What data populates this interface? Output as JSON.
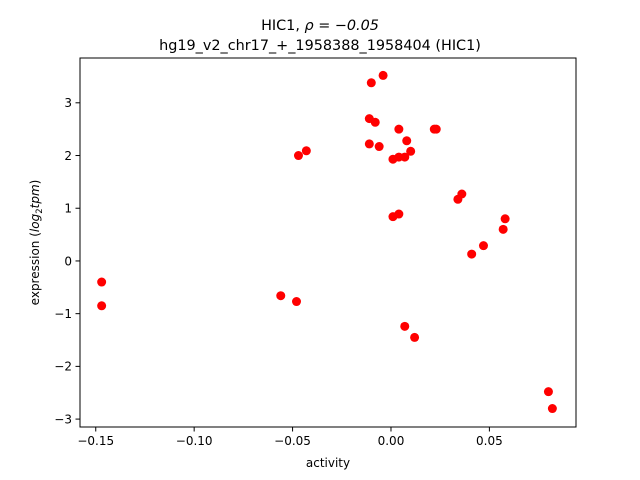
{
  "chart_data": {
    "type": "scatter",
    "title_line1_prefix": "HIC1, ",
    "title_line1_rho": "ρ = −0.05",
    "title_line2": "hg19_v2_chr17_+_1958388_1958404 (HIC1)",
    "xlabel": "activity",
    "ylabel_prefix": "expression (",
    "ylabel_log": "log",
    "ylabel_sub": "2",
    "ylabel_tpm": "tpm",
    "ylabel_suffix": ")",
    "xlim": [
      -0.158,
      0.094
    ],
    "ylim": [
      -3.15,
      3.85
    ],
    "xticks": [
      {
        "value": -0.15,
        "label": "−0.15"
      },
      {
        "value": -0.1,
        "label": "−0.10"
      },
      {
        "value": -0.05,
        "label": "−0.05"
      },
      {
        "value": 0.0,
        "label": "0.00"
      },
      {
        "value": 0.05,
        "label": "0.05"
      }
    ],
    "yticks": [
      {
        "value": -3,
        "label": "−3"
      },
      {
        "value": -2,
        "label": "−2"
      },
      {
        "value": -1,
        "label": "−1"
      },
      {
        "value": 0,
        "label": "0"
      },
      {
        "value": 1,
        "label": "1"
      },
      {
        "value": 2,
        "label": "2"
      },
      {
        "value": 3,
        "label": "3"
      }
    ],
    "marker_color": "#ff0000",
    "grid": false,
    "points": [
      {
        "x": -0.147,
        "y": -0.4
      },
      {
        "x": -0.147,
        "y": -0.85
      },
      {
        "x": -0.056,
        "y": -0.66
      },
      {
        "x": -0.048,
        "y": -0.77
      },
      {
        "x": -0.047,
        "y": 2.0
      },
      {
        "x": -0.043,
        "y": 2.09
      },
      {
        "x": -0.01,
        "y": 3.38
      },
      {
        "x": -0.004,
        "y": 3.52
      },
      {
        "x": -0.011,
        "y": 2.7
      },
      {
        "x": -0.008,
        "y": 2.63
      },
      {
        "x": -0.011,
        "y": 2.22
      },
      {
        "x": -0.006,
        "y": 2.17
      },
      {
        "x": 0.001,
        "y": 1.93
      },
      {
        "x": 0.004,
        "y": 1.97
      },
      {
        "x": 0.004,
        "y": 2.5
      },
      {
        "x": 0.007,
        "y": 1.97
      },
      {
        "x": 0.008,
        "y": 2.28
      },
      {
        "x": 0.01,
        "y": 2.08
      },
      {
        "x": 0.022,
        "y": 2.5
      },
      {
        "x": 0.023,
        "y": 2.5
      },
      {
        "x": 0.001,
        "y": 0.84
      },
      {
        "x": 0.004,
        "y": 0.89
      },
      {
        "x": 0.007,
        "y": -1.24
      },
      {
        "x": 0.012,
        "y": -1.45
      },
      {
        "x": 0.034,
        "y": 1.17
      },
      {
        "x": 0.036,
        "y": 1.27
      },
      {
        "x": 0.041,
        "y": 0.13
      },
      {
        "x": 0.047,
        "y": 0.29
      },
      {
        "x": 0.058,
        "y": 0.8
      },
      {
        "x": 0.057,
        "y": 0.6
      },
      {
        "x": 0.08,
        "y": -2.48
      },
      {
        "x": 0.082,
        "y": -2.8
      }
    ]
  }
}
